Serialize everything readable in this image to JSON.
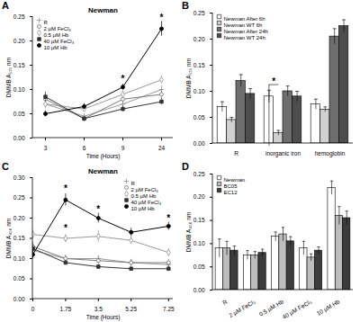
{
  "chart_data": [
    {
      "panel": "A",
      "type": "line",
      "title": "Newman",
      "x_label": "Time (Hours)",
      "y_label": "DMMB A₅₂₅ nm",
      "categories": [
        "3",
        "6",
        "9",
        "24"
      ],
      "ylim": [
        0,
        0.25
      ],
      "yticks": [
        {
          "value": 0,
          "label": "0.00"
        },
        0.05,
        {
          "value": 0.1,
          "label": "0.10"
        },
        0.15,
        {
          "value": 0.2,
          "label": "0.20"
        },
        0.25
      ],
      "legend": "top-left",
      "series": [
        {
          "name": "R",
          "color": "#9a9a9a",
          "marker": "plus",
          "values": [
            0.07,
            0.045,
            0.07,
            0.1
          ],
          "errors": [
            0.01,
            0.005,
            0.01,
            0.008
          ]
        },
        {
          "name": "2 µM FeCl₃",
          "color": "#7a7a7a",
          "marker": "circle_open",
          "values": [
            0.08,
            0.04,
            0.08,
            0.09
          ],
          "errors": [
            0.008,
            0.005,
            0.008,
            0.01
          ]
        },
        {
          "name": "0.5 µM Hb",
          "color": "#9a9a9a",
          "marker": "diamond_open",
          "values": [
            0.07,
            0.06,
            0.09,
            0.12
          ],
          "errors": [
            0.008,
            0.006,
            0.008,
            0.008
          ]
        },
        {
          "name": "40 µM FeCl₃",
          "color": "#333333",
          "marker": "square",
          "values": [
            0.085,
            0.04,
            0.06,
            0.075
          ],
          "errors": [
            0.01,
            0.004,
            0.006,
            0.006
          ]
        },
        {
          "name": "10 µM Hb",
          "color": "#000000",
          "marker": "circle",
          "values": [
            0.05,
            0.065,
            0.105,
            0.225
          ],
          "errors": [
            0.006,
            0.006,
            0.006,
            0.015
          ]
        }
      ],
      "annotations": [
        {
          "text": "*",
          "x": "9",
          "y": 0.122
        },
        {
          "text": "*",
          "x": "24",
          "y": 0.247
        }
      ]
    },
    {
      "panel": "B",
      "type": "bar",
      "y_label": "DMMB A₅₂₅ nm",
      "categories": [
        "R",
        "inorganic iron",
        "hemoglobin"
      ],
      "ylim": [
        0,
        0.25
      ],
      "yticks": [
        {
          "value": 0,
          "label": "0.00"
        },
        0.05,
        {
          "value": 0.1,
          "label": "0.10"
        },
        0.15,
        {
          "value": 0.2,
          "label": "0.20"
        },
        0.25
      ],
      "legend": "top-left",
      "series": [
        {
          "name": "Newman After 6h",
          "color": "#ffffff",
          "values": [
            0.07,
            0.09,
            0.075
          ],
          "errors": [
            0.01,
            0.012,
            0.01
          ]
        },
        {
          "name": "Newman WT 6h",
          "color": "#d0d0d0",
          "values": [
            0.045,
            0.02,
            0.065
          ],
          "errors": [
            0.005,
            0.005,
            0.005
          ]
        },
        {
          "name": "Newman After 24h",
          "color": "#6e6e6e",
          "values": [
            0.12,
            0.1,
            0.205
          ],
          "errors": [
            0.012,
            0.01,
            0.015
          ]
        },
        {
          "name": "Newman WT 24h",
          "color": "#4d4d4d",
          "values": [
            0.095,
            0.09,
            0.225
          ],
          "errors": [
            0.01,
            0.01,
            0.012
          ]
        }
      ],
      "annotations": [
        {
          "text": "*",
          "category": "inorganic iron",
          "y": 0.118
        }
      ]
    },
    {
      "panel": "C",
      "type": "line",
      "title": "Newman",
      "x_label": "Time (Hours)",
      "y_label": "DMMB A₄₅₀ nm",
      "x": [
        0,
        1.75,
        3.5,
        5.25,
        7.25
      ],
      "xlim": [
        0,
        7.5
      ],
      "xticks": [
        0,
        1.75,
        3.5,
        5.25,
        7.25
      ],
      "ylim": [
        0,
        0.3
      ],
      "yticks": [
        {
          "value": 0,
          "label": "0.00"
        },
        0.05,
        {
          "value": 0.1,
          "label": "0.10"
        },
        0.15,
        {
          "value": 0.2,
          "label": "0.20"
        },
        0.25,
        {
          "value": 0.3,
          "label": "0.30"
        }
      ],
      "legend": "top-right",
      "series": [
        {
          "name": "R",
          "color": "#9a9a9a",
          "marker": "plus",
          "values": [
            0.12,
            0.1,
            0.1,
            0.09,
            0.085
          ],
          "errors": [
            0.01,
            0.008,
            0.008,
            0.008,
            0.008
          ]
        },
        {
          "name": "2 µM FeCl₃",
          "color": "#7a7a7a",
          "marker": "circle_open",
          "values": [
            0.13,
            0.1,
            0.095,
            0.09,
            0.09
          ],
          "errors": [
            0.01,
            0.008,
            0.008,
            0.008,
            0.008
          ]
        },
        {
          "name": "0.5 µM Hb",
          "color": "#9a9a9a",
          "marker": "diamond_open",
          "values": [
            0.16,
            0.15,
            0.155,
            0.145,
            0.115
          ],
          "errors": [
            0.01,
            0.01,
            0.015,
            0.01,
            0.01
          ]
        },
        {
          "name": "40 µM FeCl₃",
          "color": "#333333",
          "marker": "square",
          "values": [
            0.125,
            0.09,
            0.08,
            0.075,
            0.075
          ],
          "errors": [
            0.008,
            0.006,
            0.006,
            0.006,
            0.006
          ]
        },
        {
          "name": "10 µM Hb",
          "color": "#000000",
          "marker": "circle",
          "values": [
            0.11,
            0.245,
            0.2,
            0.165,
            0.18
          ],
          "errors": [
            0.01,
            0.015,
            0.012,
            0.01,
            0.01
          ]
        }
      ],
      "annotations": [
        {
          "text": "*",
          "x": 1.75,
          "y": 0.272
        },
        {
          "text": "*",
          "x": 1.75,
          "y": 0.176
        },
        {
          "text": "*",
          "x": 3.5,
          "y": 0.222
        },
        {
          "text": "*",
          "x": 7.25,
          "y": 0.2
        }
      ]
    },
    {
      "panel": "D",
      "type": "bar",
      "y_label": "DMMB A₄₅₀ nm",
      "categories": [
        "R",
        "2 µM FeCl₃",
        "0.5 µM Hb",
        "40 µM FeCl₃",
        "10 µM Hb"
      ],
      "ylim": [
        0,
        0.25
      ],
      "yticks": [
        {
          "value": 0,
          "label": "0.00"
        },
        0.05,
        {
          "value": 0.1,
          "label": "0.10"
        },
        0.15,
        {
          "value": 0.2,
          "label": "0.20"
        },
        0.25
      ],
      "legend": "top-left",
      "series": [
        {
          "name": "Newman",
          "color": "#ffffff",
          "values": [
            0.09,
            0.075,
            0.115,
            0.09,
            0.22
          ],
          "errors": [
            0.02,
            0.01,
            0.01,
            0.015,
            0.015
          ]
        },
        {
          "name": "BC05",
          "color": "#bdbdbd",
          "values": [
            0.09,
            0.075,
            0.12,
            0.07,
            0.16
          ],
          "errors": [
            0.015,
            0.008,
            0.015,
            0.008,
            0.02
          ]
        },
        {
          "name": "EC12",
          "color": "#3c3c3c",
          "values": [
            0.085,
            0.08,
            0.105,
            0.085,
            0.155
          ],
          "errors": [
            0.01,
            0.008,
            0.01,
            0.008,
            0.015
          ]
        }
      ]
    }
  ]
}
